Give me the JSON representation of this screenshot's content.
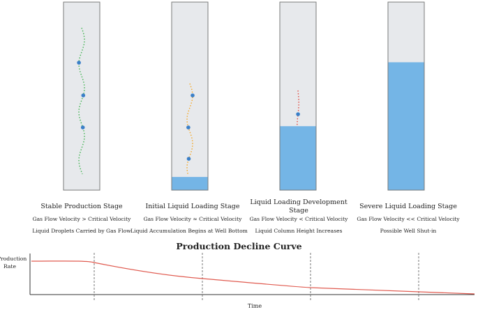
{
  "stages": [
    {
      "title": "Stable Production Stage",
      "condition": "Gas Flow Velocity > Critical Velocity",
      "note": "Liquid Droplets Carried by Gas Flow",
      "liquid_level": 0.0,
      "flow_color": "#3fb34f"
    },
    {
      "title": "Initial Liquid Loading Stage",
      "condition": "Gas Flow Velocity ≈ Critical Velocity",
      "note": "Liquid Accumulation Begins at Well Bottom",
      "liquid_level": 0.07,
      "flow_color": "#f5a623"
    },
    {
      "title": "Liquid Loading Development Stage",
      "condition": "Gas Flow Velocity < Critical Velocity",
      "note": "Liquid Column Height Increases",
      "liquid_level": 0.34,
      "flow_color": "#e0453a"
    },
    {
      "title": "Severe Liquid Loading Stage",
      "condition": "Gas Flow Velocity << Critical Velocity",
      "note": "Possible Well Shut-in",
      "liquid_level": 0.68,
      "flow_color": "#74b5e6"
    }
  ],
  "colors": {
    "tube_fill": "#e7e9ec",
    "tube_border": "#7a7a7a",
    "liquid": "#74b5e6",
    "droplet": "#3a7fc8",
    "curve": "#e05a4f"
  },
  "curve": {
    "title": "Production Decline Curve",
    "ylabel": "Production Rate",
    "xlabel": "Time"
  }
}
